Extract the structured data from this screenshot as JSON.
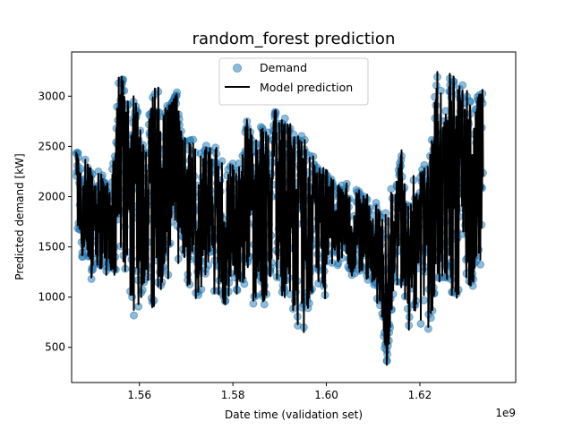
{
  "chart_data": {
    "type": "scatter",
    "title": "random_forest prediction",
    "xlabel": "Date time (validation set)",
    "ylabel": "Predicted demand [kW]",
    "x_offset_label": "1e9",
    "xlim": [
      1545500000.0,
      1640500000.0
    ],
    "ylim": [
      150,
      3440
    ],
    "xticks": [
      1560000000.0,
      1580000000.0,
      1600000000.0,
      1620000000.0
    ],
    "xtick_labels": [
      "1.56",
      "1.58",
      "1.60",
      "1.62"
    ],
    "yticks": [
      500,
      1000,
      1500,
      2000,
      2500,
      3000
    ],
    "ytick_labels": [
      "500",
      "1000",
      "1500",
      "2000",
      "2500",
      "3000"
    ],
    "legend_position": "upper center",
    "series": [
      {
        "name": "Demand",
        "kind": "scatter",
        "color": "#1f77b4",
        "x": [
          1546500000.0,
          1548000000.0,
          1549500000.0,
          1551000000.0,
          1552500000.0,
          1554000000.0,
          1555600000.0,
          1556500000.0,
          1558000000.0,
          1559500000.0,
          1561000000.0,
          1562500000.0,
          1563500000.0,
          1565000000.0,
          1566500000.0,
          1568000000.0,
          1569500000.0,
          1571000000.0,
          1572500000.0,
          1574000000.0,
          1575500000.0,
          1577000000.0,
          1578500000.0,
          1580000000.0,
          1581500000.0,
          1583000000.0,
          1584500000.0,
          1586000000.0,
          1587500000.0,
          1589000000.0,
          1590500000.0,
          1592000000.0,
          1593500000.0,
          1595000000.0,
          1596500000.0,
          1598000000.0,
          1599500000.0,
          1601000000.0,
          1602500000.0,
          1604000000.0,
          1605500000.0,
          1607000000.0,
          1608500000.0,
          1610000000.0,
          1611500000.0,
          1613000000.0,
          1614500000.0,
          1616000000.0,
          1617500000.0,
          1619000000.0,
          1620500000.0,
          1622000000.0,
          1623500000.0,
          1625000000.0,
          1626500000.0,
          1628000000.0,
          1629500000.0,
          1631000000.0,
          1632500000.0,
          1633500000.0
        ],
        "y": [
          2400,
          1600,
          2200,
          1500,
          2100,
          1450,
          2700,
          3200,
          1900,
          2900,
          1400,
          2500,
          3050,
          1200,
          2800,
          3100,
          1700,
          2300,
          1350,
          2450,
          1600,
          2000,
          1250,
          1950,
          1400,
          2750,
          1300,
          2200,
          1500,
          2850,
          1150,
          2650,
          1900,
          2400,
          1350,
          2250,
          1600,
          2050,
          1450,
          1850,
          1250,
          2050,
          1500,
          1400,
          1700,
          400,
          1650,
          2350,
          1150,
          1500,
          2200,
          1600,
          2950,
          1300,
          3050,
          2100,
          2900,
          1450,
          3000,
          2450
        ],
        "y_min_envelope": [
          1600,
          1300,
          1150,
          1300,
          1200,
          1300,
          1100,
          1100,
          900,
          700,
          1150,
          1000,
          700,
          1100,
          1200,
          1300,
          1200,
          1050,
          1000,
          1100,
          1050,
          1050,
          900,
          1100,
          1050,
          1100,
          850,
          700,
          1000,
          1100,
          1050,
          1050,
          700,
          400,
          800,
          1100,
          800,
          1250,
          1300,
          1300,
          1200,
          1200,
          1150,
          1100,
          800,
          300,
          1000,
          1100,
          650,
          800,
          500,
          450,
          1100,
          1000,
          1050,
          1000,
          1150,
          1100,
          1050,
          1200
        ],
        "y_max_envelope": [
          2500,
          2400,
          2300,
          2350,
          2200,
          2200,
          3220,
          3150,
          3000,
          2900,
          2700,
          2950,
          3200,
          2850,
          3000,
          2900,
          2600,
          2700,
          2400,
          2500,
          2550,
          2450,
          2300,
          2350,
          2400,
          2760,
          2550,
          2700,
          2800,
          2850,
          2750,
          2850,
          2650,
          2600,
          2500,
          2300,
          2250,
          2200,
          2100,
          2150,
          2100,
          2050,
          2000,
          2050,
          1800,
          2050,
          2100,
          2450,
          1900,
          2250,
          2300,
          2350,
          3200,
          3300,
          3200,
          3100,
          3150,
          3100,
          3050,
          3100
        ]
      },
      {
        "name": "Model prediction",
        "kind": "line",
        "color": "#000000"
      }
    ]
  }
}
